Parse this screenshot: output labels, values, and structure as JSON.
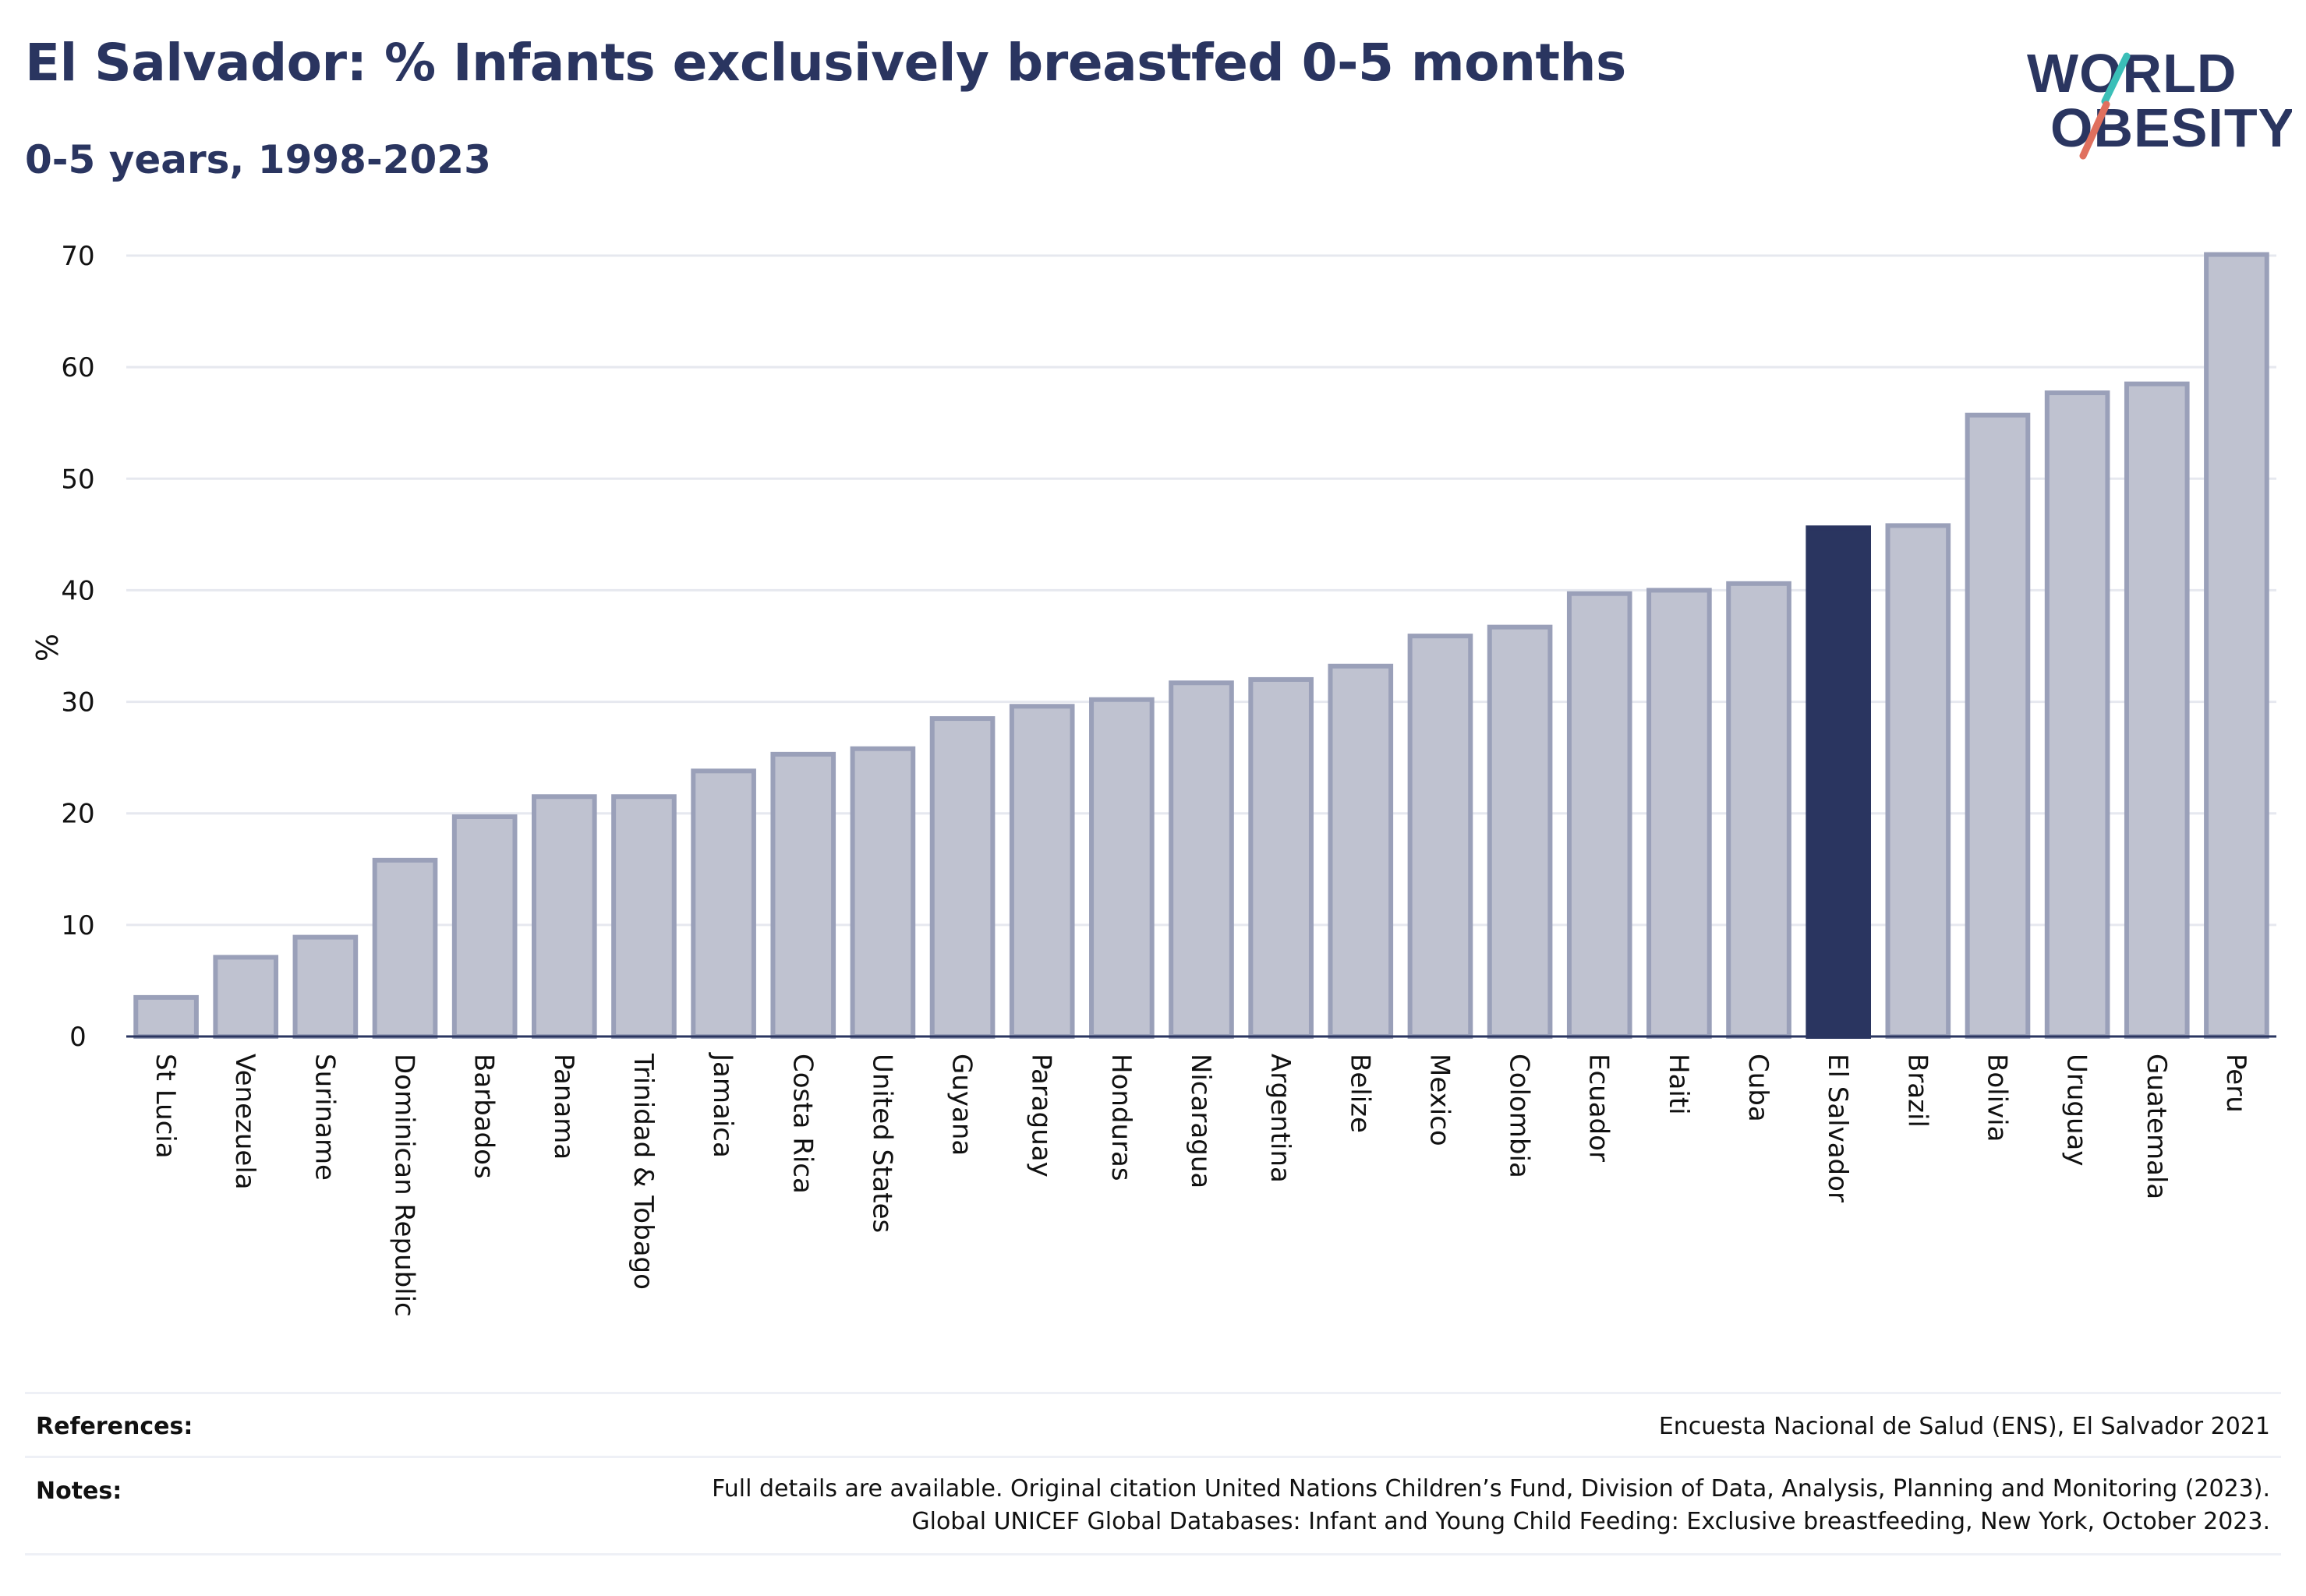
{
  "header": {
    "title": "El Salvador: % Infants exclusively breastfed 0-5 months",
    "subtitle": "0-5 years, 1998-2023"
  },
  "logo": {
    "line1": "WORLD",
    "line2": "OBESITY",
    "colors": {
      "text": "#2a3560",
      "slash_red": "#e0705e",
      "slash_teal": "#3bbfb8"
    }
  },
  "chart_data": {
    "type": "bar",
    "ylabel": "%",
    "xlabel": "",
    "ylim": [
      0,
      70
    ],
    "yticks": [
      0,
      10,
      20,
      30,
      40,
      50,
      60,
      70
    ],
    "grid": true,
    "highlight": "El Salvador",
    "colors": {
      "bar": "#bfc2d0",
      "bar_border": "#9aa0b9",
      "highlight": "#2a3560"
    },
    "categories": [
      "St Lucia",
      "Venezuela",
      "Suriname",
      "Dominican Republic",
      "Barbados",
      "Panama",
      "Trinidad & Tobago",
      "Jamaica",
      "Costa Rica",
      "United States",
      "Guyana",
      "Paraguay",
      "Honduras",
      "Nicaragua",
      "Argentina",
      "Belize",
      "Mexico",
      "Colombia",
      "Ecuador",
      "Haiti",
      "Cuba",
      "El Salvador",
      "Brazil",
      "Bolivia",
      "Uruguay",
      "Guatemala",
      "Peru"
    ],
    "values": [
      3.5,
      7.1,
      8.9,
      15.8,
      19.7,
      21.5,
      21.5,
      23.8,
      25.3,
      25.8,
      28.5,
      29.6,
      30.2,
      31.7,
      32.0,
      33.2,
      35.9,
      36.7,
      39.7,
      40.0,
      40.6,
      45.6,
      45.8,
      55.7,
      57.7,
      58.5,
      70.1
    ]
  },
  "footer": {
    "references_label": "References:",
    "references_text": "Encuesta Nacional de Salud (ENS), El Salvador 2021",
    "notes_label": "Notes:",
    "notes_line1": "Full details are available. Original citation United Nations Children’s Fund, Division of Data, Analysis, Planning and Monitoring (2023).",
    "notes_line2": "Global UNICEF Global Databases: Infant and Young Child Feeding: Exclusive breastfeeding, New York, October 2023."
  }
}
